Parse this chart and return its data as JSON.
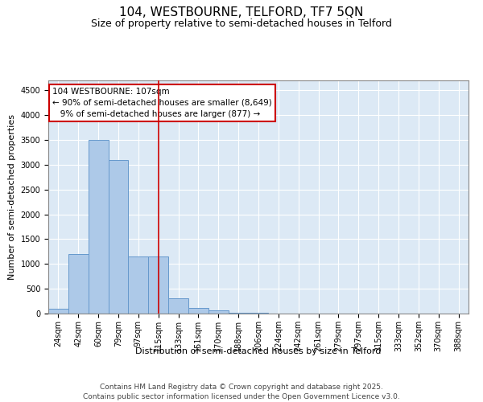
{
  "title": "104, WESTBOURNE, TELFORD, TF7 5QN",
  "subtitle": "Size of property relative to semi-detached houses in Telford",
  "xlabel": "Distribution of semi-detached houses by size in Telford",
  "ylabel": "Number of semi-detached properties",
  "bins": [
    "24sqm",
    "42sqm",
    "60sqm",
    "79sqm",
    "97sqm",
    "115sqm",
    "133sqm",
    "151sqm",
    "170sqm",
    "188sqm",
    "206sqm",
    "224sqm",
    "242sqm",
    "261sqm",
    "279sqm",
    "297sqm",
    "315sqm",
    "333sqm",
    "352sqm",
    "370sqm",
    "388sqm"
  ],
  "values": [
    100,
    1200,
    3500,
    3100,
    1150,
    1150,
    300,
    120,
    60,
    20,
    10,
    5,
    3,
    2,
    1,
    1,
    0,
    0,
    0,
    0,
    0
  ],
  "bar_color": "#adc9e8",
  "bar_edge_color": "#6699cc",
  "vline_x_index": 5.0,
  "vline_color": "#cc0000",
  "annotation_text": "104 WESTBOURNE: 107sqm\n← 90% of semi-detached houses are smaller (8,649)\n   9% of semi-detached houses are larger (877) →",
  "annotation_box_color": "#ffffff",
  "annotation_box_edge": "#cc0000",
  "ylim": [
    0,
    4700
  ],
  "yticks": [
    0,
    500,
    1000,
    1500,
    2000,
    2500,
    3000,
    3500,
    4000,
    4500
  ],
  "background_color": "#dce9f5",
  "grid_color": "#ffffff",
  "footer_line1": "Contains HM Land Registry data © Crown copyright and database right 2025.",
  "footer_line2": "Contains public sector information licensed under the Open Government Licence v3.0.",
  "title_fontsize": 11,
  "subtitle_fontsize": 9,
  "axis_label_fontsize": 8,
  "tick_fontsize": 7,
  "annotation_fontsize": 7.5,
  "footer_fontsize": 6.5
}
